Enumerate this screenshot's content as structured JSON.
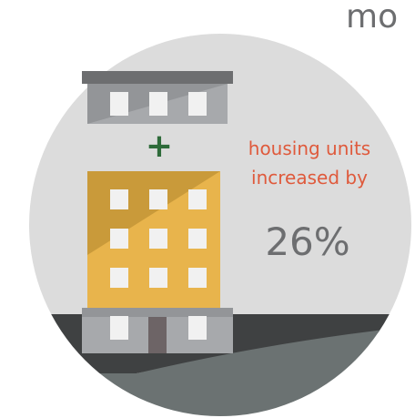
{
  "header": {
    "title": "mo"
  },
  "symbol": "+",
  "caption": {
    "line1": "housing units",
    "line2": "increased by",
    "figure": "26%"
  }
}
